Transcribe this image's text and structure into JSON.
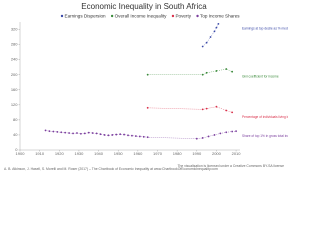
{
  "chart_data": {
    "type": "scatter-line",
    "title": "Economic Inequality in South Africa",
    "xlim": [
      1900,
      2012
    ],
    "xticks": [
      1900,
      1910,
      1920,
      1930,
      1940,
      1950,
      1960,
      1970,
      1980,
      1990,
      2000,
      2010
    ],
    "ylim": [
      0,
      340
    ],
    "yticks": [
      0,
      40,
      80,
      120,
      160,
      200,
      240,
      280,
      320
    ],
    "series": [
      {
        "name": "Earnings Dispersion",
        "color": "#3b4aa8",
        "note": "Earnings at top decile as % median",
        "x": [
          1993,
          1995,
          1997,
          1999,
          2000,
          2001
        ],
        "values": [
          275,
          285,
          300,
          315,
          325,
          335
        ]
      },
      {
        "name": "Overall Income Inequality",
        "color": "#3a8a3a",
        "note": "Gini coefficient for income",
        "x": [
          1965,
          1993,
          1995,
          2000,
          2005,
          2008
        ],
        "values": [
          200,
          200,
          205,
          210,
          215,
          208
        ]
      },
      {
        "name": "Poverty",
        "color": "#d9304a",
        "note": "Percentage of individuals living in households below poverty line",
        "x": [
          1965,
          1993,
          1995,
          2000,
          2005,
          2008
        ],
        "values": [
          112,
          108,
          110,
          115,
          105,
          100
        ]
      },
      {
        "name": "Top Income Shares",
        "color": "#7b3f9e",
        "note": "Share of top 1% in gross total income",
        "x": [
          1913,
          1915,
          1917,
          1919,
          1921,
          1923,
          1925,
          1927,
          1929,
          1931,
          1933,
          1935,
          1937,
          1939,
          1941,
          1943,
          1945,
          1947,
          1949,
          1951,
          1953,
          1955,
          1957,
          1959,
          1961,
          1963,
          1965,
          1990,
          1993,
          1996,
          1999,
          2002,
          2005,
          2008,
          2010
        ],
        "values": [
          52,
          50,
          49,
          48,
          47,
          46,
          45,
          44,
          45,
          43,
          44,
          46,
          45,
          44,
          42,
          40,
          39,
          40,
          41,
          42,
          41,
          39,
          38,
          37,
          36,
          35,
          34,
          30,
          32,
          36,
          40,
          44,
          47,
          49,
          50
        ]
      }
    ],
    "source": "A. B. Atkinson, J. Hasell, S. Morelli and M. Roser (2017) – The Chartbook of Economic Inequality at www.ChartbookOfEconomicInequality.com",
    "license": "The visualisation is licensed under a Creative Commons BY-SA license"
  }
}
